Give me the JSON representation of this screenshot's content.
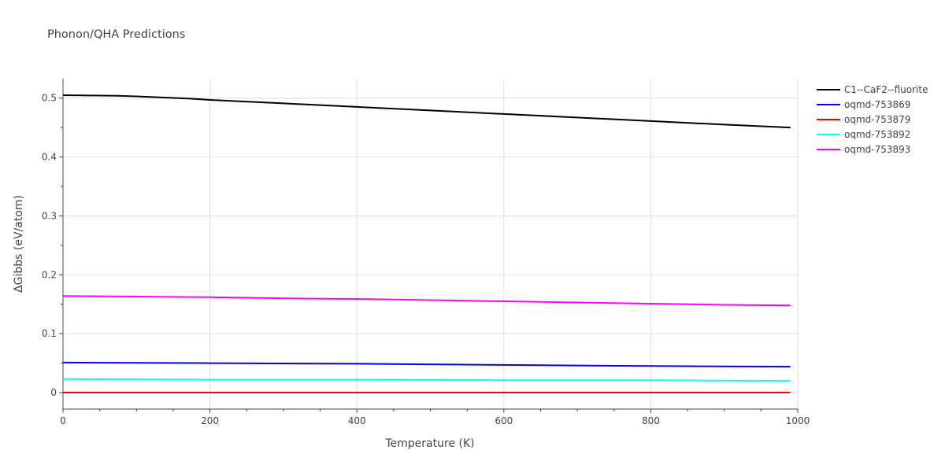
{
  "chart_data": {
    "type": "line",
    "title": "Phonon/QHA Predictions",
    "xlabel": "Temperature (K)",
    "ylabel": "ΔGibbs (eV/atom)",
    "xlim": [
      0,
      1000
    ],
    "ylim": [
      -0.028,
      0.533
    ],
    "xticks": [
      0,
      200,
      400,
      600,
      800,
      1000
    ],
    "xtick_labels": [
      "0",
      "200",
      "400",
      "600",
      "800",
      "1000"
    ],
    "yticks": [
      0,
      0.1,
      0.2,
      0.3,
      0.4,
      0.5
    ],
    "ytick_labels": [
      "0",
      "0.1",
      "0.2",
      "0.3",
      "0.4",
      "0.5"
    ],
    "grid": true,
    "legend_position": "top-right, outside plot",
    "series": [
      {
        "name": "C1--CaF2--fluorite",
        "color": "#000000",
        "x": [
          0,
          75,
          100,
          175,
          200,
          300,
          400,
          500,
          600,
          700,
          800,
          900,
          990
        ],
        "y": [
          0.505,
          0.504,
          0.503,
          0.499,
          0.497,
          0.491,
          0.485,
          0.479,
          0.473,
          0.467,
          0.461,
          0.455,
          0.45
        ]
      },
      {
        "name": "oqmd-753869",
        "color": "#0000ff",
        "x": [
          0,
          200,
          400,
          600,
          800,
          990
        ],
        "y": [
          0.051,
          0.05,
          0.049,
          0.047,
          0.045,
          0.044
        ]
      },
      {
        "name": "oqmd-753879",
        "color": "#ff0000",
        "x": [
          0,
          200,
          400,
          600,
          800,
          990
        ],
        "y": [
          0.0,
          0.0,
          0.0,
          0.0,
          0.0,
          0.0
        ]
      },
      {
        "name": "oqmd-753892",
        "color": "#00ffff",
        "x": [
          0,
          200,
          400,
          600,
          800,
          990
        ],
        "y": [
          0.023,
          0.022,
          0.022,
          0.021,
          0.021,
          0.02
        ]
      },
      {
        "name": "oqmd-753893",
        "color": "#ff00ff",
        "x": [
          0,
          100,
          200,
          300,
          400,
          500,
          600,
          700,
          800,
          900,
          990
        ],
        "y": [
          0.164,
          0.163,
          0.162,
          0.16,
          0.159,
          0.157,
          0.155,
          0.153,
          0.151,
          0.149,
          0.148
        ]
      }
    ]
  }
}
